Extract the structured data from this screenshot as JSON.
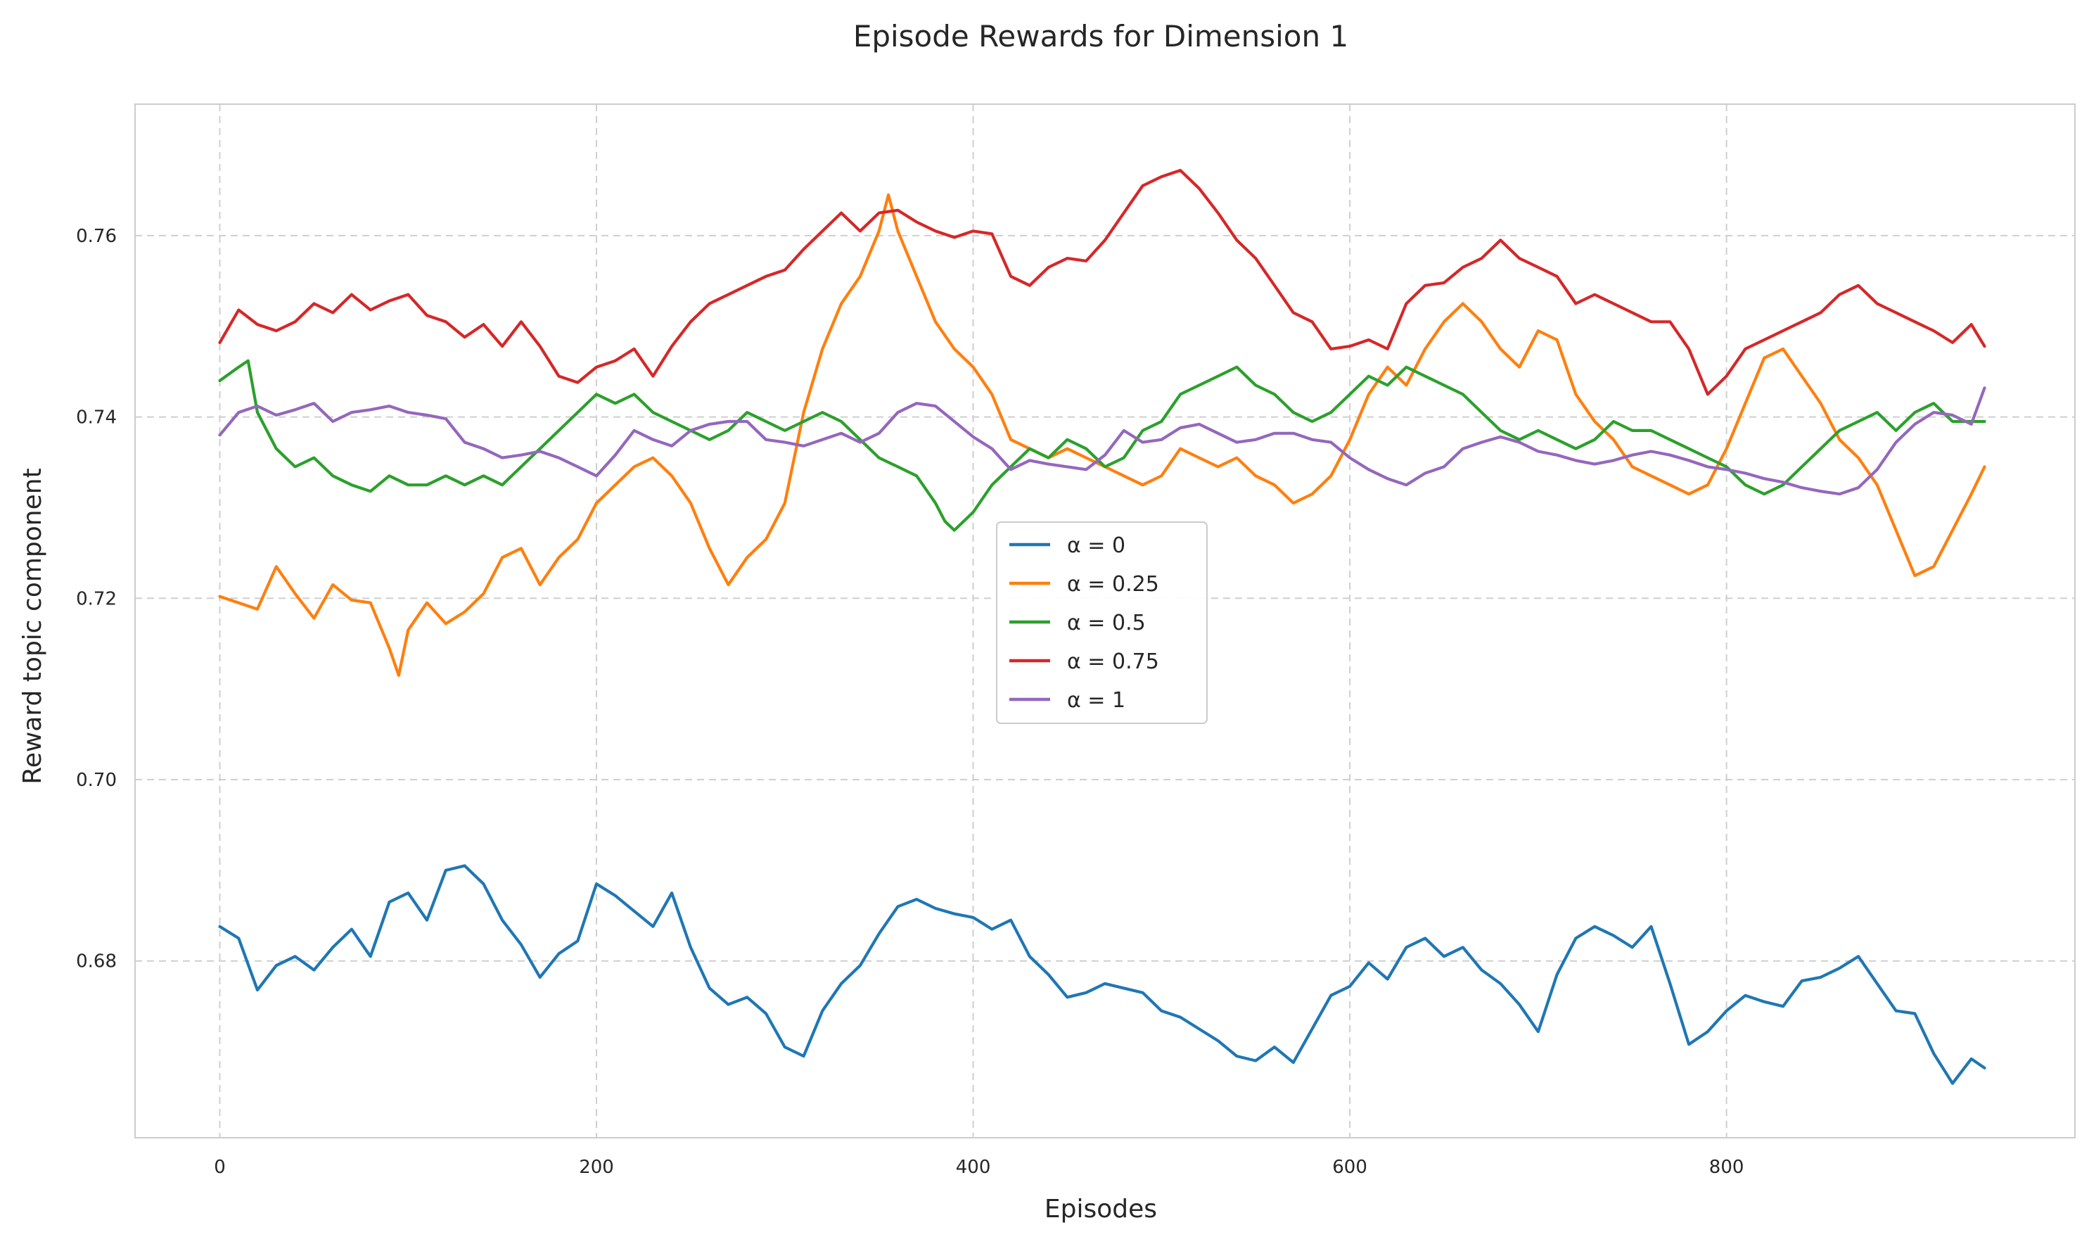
{
  "chart_data": {
    "type": "line",
    "title": "Episode Rewards for Dimension 1",
    "xlabel": "Episodes",
    "ylabel": "Reward topic component",
    "xlim": [
      -45,
      985
    ],
    "ylim": [
      0.6605,
      0.7745
    ],
    "xticks": [
      0,
      200,
      400,
      600,
      800
    ],
    "xtick_labels": [
      "0",
      "200",
      "400",
      "600",
      "800"
    ],
    "yticks": [
      0.68,
      0.7,
      0.72,
      0.74,
      0.76
    ],
    "ytick_labels": [
      "0.68",
      "0.70",
      "0.72",
      "0.74",
      "0.76"
    ],
    "grid": true,
    "legend_position": "center",
    "series": [
      {
        "name": "α = 0",
        "color": "#1f77b4",
        "x": [
          0,
          10,
          20,
          30,
          40,
          50,
          60,
          70,
          80,
          90,
          100,
          110,
          120,
          130,
          140,
          150,
          160,
          170,
          180,
          190,
          200,
          210,
          220,
          230,
          240,
          250,
          260,
          270,
          280,
          290,
          300,
          310,
          320,
          330,
          340,
          350,
          360,
          370,
          380,
          390,
          400,
          410,
          420,
          430,
          440,
          450,
          460,
          470,
          480,
          490,
          500,
          510,
          520,
          530,
          540,
          550,
          560,
          570,
          580,
          590,
          600,
          610,
          620,
          630,
          640,
          650,
          660,
          670,
          680,
          690,
          700,
          710,
          720,
          730,
          740,
          750,
          760,
          770,
          780,
          790,
          800,
          810,
          820,
          830,
          840,
          850,
          860,
          870,
          880,
          890,
          900,
          910,
          920,
          930,
          937
        ],
        "y": [
          0.6838,
          0.6825,
          0.6768,
          0.6795,
          0.6805,
          0.679,
          0.6815,
          0.6835,
          0.6805,
          0.6865,
          0.6875,
          0.6845,
          0.69,
          0.6905,
          0.6885,
          0.6845,
          0.6818,
          0.6782,
          0.6808,
          0.6822,
          0.6885,
          0.6872,
          0.6855,
          0.6838,
          0.6875,
          0.6815,
          0.677,
          0.6752,
          0.676,
          0.6742,
          0.6705,
          0.6695,
          0.6745,
          0.6775,
          0.6795,
          0.683,
          0.686,
          0.6868,
          0.6858,
          0.6852,
          0.6848,
          0.6835,
          0.6845,
          0.6805,
          0.6785,
          0.676,
          0.6765,
          0.6775,
          0.677,
          0.6765,
          0.6745,
          0.6738,
          0.6725,
          0.6712,
          0.6695,
          0.669,
          0.6705,
          0.6688,
          0.6725,
          0.6762,
          0.6772,
          0.6798,
          0.678,
          0.6815,
          0.6825,
          0.6805,
          0.6815,
          0.679,
          0.6775,
          0.6752,
          0.6722,
          0.6785,
          0.6825,
          0.6838,
          0.6828,
          0.6815,
          0.6838,
          0.6775,
          0.6708,
          0.6722,
          0.6745,
          0.6762,
          0.6755,
          0.675,
          0.6778,
          0.6782,
          0.6792,
          0.6805,
          0.6775,
          0.6745,
          0.6742,
          0.6698,
          0.6665,
          0.6692,
          0.6682
        ]
      },
      {
        "name": "α = 0.25",
        "color": "#ff7f0e",
        "x": [
          0,
          10,
          20,
          30,
          40,
          50,
          60,
          70,
          80,
          90,
          95,
          100,
          110,
          120,
          130,
          140,
          150,
          160,
          170,
          180,
          190,
          200,
          210,
          220,
          230,
          240,
          250,
          260,
          270,
          280,
          290,
          300,
          310,
          320,
          330,
          340,
          350,
          355,
          360,
          370,
          380,
          390,
          400,
          410,
          420,
          430,
          440,
          450,
          460,
          470,
          480,
          490,
          500,
          510,
          520,
          530,
          540,
          550,
          560,
          570,
          580,
          590,
          600,
          610,
          620,
          630,
          640,
          650,
          660,
          670,
          680,
          690,
          700,
          710,
          720,
          730,
          740,
          750,
          760,
          770,
          780,
          790,
          800,
          810,
          820,
          830,
          840,
          850,
          860,
          870,
          880,
          890,
          900,
          910,
          920,
          930,
          937
        ],
        "y": [
          0.7202,
          0.7195,
          0.7188,
          0.7235,
          0.7205,
          0.7178,
          0.7215,
          0.7198,
          0.7195,
          0.7145,
          0.7115,
          0.7165,
          0.7195,
          0.7172,
          0.7185,
          0.7205,
          0.7245,
          0.7255,
          0.7215,
          0.7245,
          0.7265,
          0.7305,
          0.7325,
          0.7345,
          0.7355,
          0.7335,
          0.7305,
          0.7255,
          0.7215,
          0.7245,
          0.7265,
          0.7305,
          0.7405,
          0.7475,
          0.7525,
          0.7555,
          0.7605,
          0.7645,
          0.7605,
          0.7555,
          0.7505,
          0.7475,
          0.7455,
          0.7425,
          0.7375,
          0.7365,
          0.7355,
          0.7365,
          0.7355,
          0.7345,
          0.7335,
          0.7325,
          0.7335,
          0.7365,
          0.7355,
          0.7345,
          0.7355,
          0.7335,
          0.7325,
          0.7305,
          0.7315,
          0.7335,
          0.7375,
          0.7425,
          0.7455,
          0.7435,
          0.7475,
          0.7505,
          0.7525,
          0.7505,
          0.7475,
          0.7455,
          0.7495,
          0.7485,
          0.7425,
          0.7395,
          0.7375,
          0.7345,
          0.7335,
          0.7325,
          0.7315,
          0.7325,
          0.7365,
          0.7415,
          0.7465,
          0.7475,
          0.7445,
          0.7415,
          0.7375,
          0.7355,
          0.7325,
          0.7275,
          0.7225,
          0.7235,
          0.7275,
          0.7315,
          0.7345
        ]
      },
      {
        "name": "α = 0.5",
        "color": "#2ca02c",
        "x": [
          0,
          10,
          15,
          20,
          30,
          40,
          50,
          60,
          70,
          80,
          90,
          100,
          110,
          120,
          130,
          140,
          150,
          160,
          170,
          180,
          190,
          200,
          210,
          220,
          230,
          240,
          250,
          260,
          270,
          280,
          290,
          300,
          310,
          320,
          330,
          340,
          350,
          360,
          370,
          380,
          385,
          390,
          400,
          410,
          420,
          430,
          440,
          450,
          460,
          470,
          480,
          490,
          500,
          510,
          520,
          530,
          540,
          550,
          560,
          570,
          580,
          590,
          600,
          610,
          620,
          630,
          640,
          650,
          660,
          670,
          680,
          690,
          700,
          710,
          720,
          730,
          740,
          750,
          760,
          770,
          780,
          790,
          800,
          810,
          820,
          830,
          840,
          850,
          860,
          870,
          880,
          890,
          900,
          910,
          920,
          930,
          937
        ],
        "y": [
          0.744,
          0.7455,
          0.7462,
          0.7405,
          0.7365,
          0.7345,
          0.7355,
          0.7335,
          0.7325,
          0.7318,
          0.7335,
          0.7325,
          0.7325,
          0.7335,
          0.7325,
          0.7335,
          0.7325,
          0.7345,
          0.7365,
          0.7385,
          0.7405,
          0.7425,
          0.7415,
          0.7425,
          0.7405,
          0.7395,
          0.7385,
          0.7375,
          0.7385,
          0.7405,
          0.7395,
          0.7385,
          0.7395,
          0.7405,
          0.7395,
          0.7375,
          0.7355,
          0.7345,
          0.7335,
          0.7305,
          0.7285,
          0.7275,
          0.7295,
          0.7325,
          0.7345,
          0.7365,
          0.7355,
          0.7375,
          0.7365,
          0.7345,
          0.7355,
          0.7385,
          0.7395,
          0.7425,
          0.7435,
          0.7445,
          0.7455,
          0.7435,
          0.7425,
          0.7405,
          0.7395,
          0.7405,
          0.7425,
          0.7445,
          0.7435,
          0.7455,
          0.7445,
          0.7435,
          0.7425,
          0.7405,
          0.7385,
          0.7375,
          0.7385,
          0.7375,
          0.7365,
          0.7375,
          0.7395,
          0.7385,
          0.7385,
          0.7375,
          0.7365,
          0.7355,
          0.7345,
          0.7325,
          0.7315,
          0.7325,
          0.7345,
          0.7365,
          0.7385,
          0.7395,
          0.7405,
          0.7385,
          0.7405,
          0.7415,
          0.7395,
          0.7395,
          0.7395
        ]
      },
      {
        "name": "α = 0.75",
        "color": "#d62728",
        "x": [
          0,
          10,
          20,
          30,
          40,
          50,
          60,
          70,
          80,
          90,
          100,
          110,
          120,
          130,
          140,
          150,
          160,
          170,
          180,
          190,
          200,
          210,
          220,
          230,
          240,
          250,
          260,
          270,
          280,
          290,
          300,
          310,
          320,
          330,
          340,
          350,
          360,
          370,
          380,
          390,
          400,
          410,
          420,
          430,
          440,
          450,
          460,
          470,
          480,
          490,
          500,
          510,
          520,
          530,
          540,
          550,
          560,
          570,
          580,
          590,
          600,
          610,
          620,
          630,
          640,
          650,
          660,
          670,
          680,
          690,
          700,
          710,
          720,
          730,
          740,
          750,
          760,
          770,
          780,
          790,
          800,
          810,
          820,
          830,
          840,
          850,
          860,
          870,
          880,
          890,
          900,
          910,
          920,
          930,
          937
        ],
        "y": [
          0.7482,
          0.7518,
          0.7502,
          0.7495,
          0.7505,
          0.7525,
          0.7515,
          0.7535,
          0.7518,
          0.7528,
          0.7535,
          0.7512,
          0.7505,
          0.7488,
          0.7502,
          0.7478,
          0.7505,
          0.7478,
          0.7445,
          0.7438,
          0.7455,
          0.7462,
          0.7475,
          0.7445,
          0.7478,
          0.7505,
          0.7525,
          0.7535,
          0.7545,
          0.7555,
          0.7562,
          0.7585,
          0.7605,
          0.7625,
          0.7605,
          0.7625,
          0.7628,
          0.7615,
          0.7605,
          0.7598,
          0.7605,
          0.7602,
          0.7555,
          0.7545,
          0.7565,
          0.7575,
          0.7572,
          0.7595,
          0.7625,
          0.7655,
          0.7665,
          0.7672,
          0.7652,
          0.7625,
          0.7595,
          0.7575,
          0.7545,
          0.7515,
          0.7505,
          0.7475,
          0.7478,
          0.7485,
          0.7475,
          0.7525,
          0.7545,
          0.7548,
          0.7565,
          0.7575,
          0.7595,
          0.7575,
          0.7565,
          0.7555,
          0.7525,
          0.7535,
          0.7525,
          0.7515,
          0.7505,
          0.7505,
          0.7475,
          0.7425,
          0.7445,
          0.7475,
          0.7485,
          0.7495,
          0.7505,
          0.7515,
          0.7535,
          0.7545,
          0.7525,
          0.7515,
          0.7505,
          0.7495,
          0.7482,
          0.7502,
          0.7478
        ]
      },
      {
        "name": "α = 1",
        "color": "#9467bd",
        "x": [
          0,
          10,
          20,
          30,
          40,
          50,
          60,
          70,
          80,
          90,
          100,
          110,
          120,
          130,
          140,
          150,
          160,
          170,
          180,
          190,
          200,
          210,
          220,
          230,
          240,
          250,
          260,
          270,
          280,
          290,
          300,
          310,
          320,
          330,
          340,
          350,
          360,
          370,
          380,
          390,
          400,
          410,
          420,
          430,
          440,
          450,
          460,
          470,
          480,
          490,
          500,
          510,
          520,
          530,
          540,
          550,
          560,
          570,
          580,
          590,
          600,
          610,
          620,
          630,
          640,
          650,
          660,
          670,
          680,
          690,
          700,
          710,
          720,
          730,
          740,
          750,
          760,
          770,
          780,
          790,
          800,
          810,
          820,
          830,
          840,
          850,
          860,
          870,
          880,
          890,
          900,
          910,
          920,
          930,
          937
        ],
        "y": [
          0.738,
          0.7405,
          0.7412,
          0.7402,
          0.7408,
          0.7415,
          0.7395,
          0.7405,
          0.7408,
          0.7412,
          0.7405,
          0.7402,
          0.7398,
          0.7372,
          0.7365,
          0.7355,
          0.7358,
          0.7362,
          0.7355,
          0.7345,
          0.7335,
          0.7358,
          0.7385,
          0.7375,
          0.7368,
          0.7385,
          0.7392,
          0.7395,
          0.7395,
          0.7375,
          0.7372,
          0.7368,
          0.7375,
          0.7382,
          0.7372,
          0.7382,
          0.7405,
          0.7415,
          0.7412,
          0.7395,
          0.7378,
          0.7365,
          0.7342,
          0.7352,
          0.7348,
          0.7345,
          0.7342,
          0.7358,
          0.7385,
          0.7372,
          0.7375,
          0.7388,
          0.7392,
          0.7382,
          0.7372,
          0.7375,
          0.7382,
          0.7382,
          0.7375,
          0.7372,
          0.7355,
          0.7342,
          0.7332,
          0.7325,
          0.7338,
          0.7345,
          0.7365,
          0.7372,
          0.7378,
          0.7372,
          0.7362,
          0.7358,
          0.7352,
          0.7348,
          0.7352,
          0.7358,
          0.7362,
          0.7358,
          0.7352,
          0.7345,
          0.7342,
          0.7338,
          0.7332,
          0.7328,
          0.7322,
          0.7318,
          0.7315,
          0.7322,
          0.7342,
          0.7372,
          0.7392,
          0.7405,
          0.7402,
          0.7392,
          0.7432
        ]
      }
    ]
  }
}
